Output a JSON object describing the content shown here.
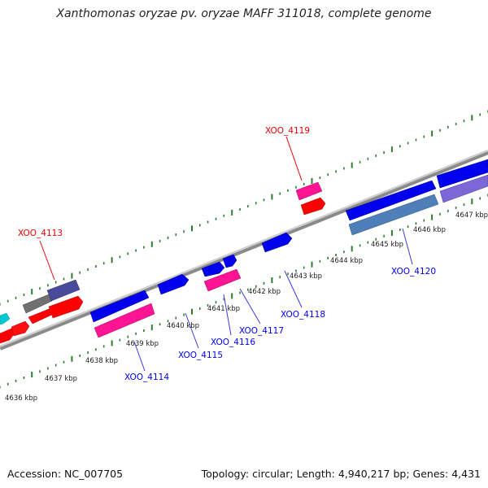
{
  "title": "Xanthomonas oryzae pv. oryzae MAFF 311018, complete genome",
  "footer": {
    "accession": "Accession: NC_007705",
    "summary": "Topology: circular; Length: 4,940,217 bp; Genes: 4,431"
  },
  "colors": {
    "backbone": "#8a8a8a",
    "tick": "#2e7d2e",
    "leader": "#3b3bd6",
    "label_blue": "#0000ee",
    "label_red": "#ee0000"
  },
  "scale_labels": [
    "4636 kbp",
    "4637 kbp",
    "4638 kbp",
    "4639 kbp",
    "4640 kbp",
    "4641 kbp",
    "4642 kbp",
    "4643 kbp",
    "4644 kbp",
    "4645 kbp",
    "4646 kbp",
    "4647 kbp"
  ],
  "gene_labels": {
    "xoo_4113": "XOO_4113",
    "xoo_4114": "XOO_4114",
    "xoo_4115": "XOO_4115",
    "xoo_4116": "XOO_4116",
    "xoo_4117": "XOO_4117",
    "xoo_4118": "XOO_4118",
    "xoo_4119": "XOO_4119",
    "xoo_4120": "XOO_4120"
  }
}
